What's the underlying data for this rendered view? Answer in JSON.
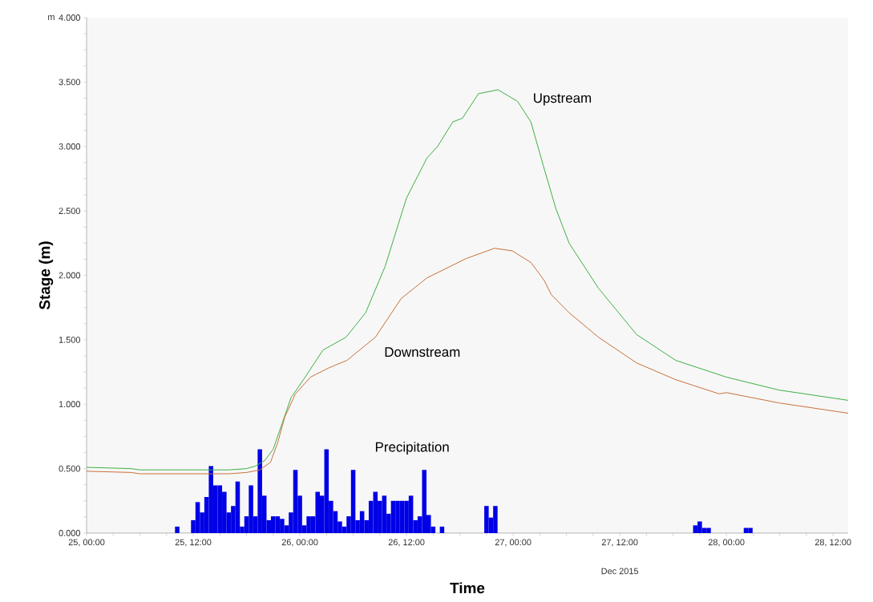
{
  "chart_data": {
    "type": "line",
    "xlabel": "Time",
    "ylabel": "Stage (m)",
    "annotations": [
      "m",
      "Dec 2015"
    ],
    "xlim": [
      "2015-12-25T00:00",
      "2015-12-28T13:42"
    ],
    "ylim": [
      0,
      4
    ],
    "xticks": [
      {
        "value": "2015-12-25T00:00",
        "label": "25, 00:00"
      },
      {
        "value": "2015-12-25T03:00",
        "label": null
      },
      {
        "value": "2015-12-25T06:00",
        "label": null
      },
      {
        "value": "2015-12-25T09:00",
        "label": null
      },
      {
        "value": "2015-12-25T12:00",
        "label": "25, 12:00"
      },
      {
        "value": "2015-12-25T15:00",
        "label": null
      },
      {
        "value": "2015-12-25T18:00",
        "label": null
      },
      {
        "value": "2015-12-25T21:00",
        "label": null
      },
      {
        "value": "2015-12-26T00:00",
        "label": "26, 00:00"
      },
      {
        "value": "2015-12-26T03:00",
        "label": null
      },
      {
        "value": "2015-12-26T06:00",
        "label": null
      },
      {
        "value": "2015-12-26T09:00",
        "label": null
      },
      {
        "value": "2015-12-26T12:00",
        "label": "26, 12:00"
      },
      {
        "value": "2015-12-26T15:00",
        "label": null
      },
      {
        "value": "2015-12-26T18:00",
        "label": null
      },
      {
        "value": "2015-12-26T21:00",
        "label": null
      },
      {
        "value": "2015-12-27T00:00",
        "label": "27, 00:00"
      },
      {
        "value": "2015-12-27T03:00",
        "label": null
      },
      {
        "value": "2015-12-27T06:00",
        "label": null
      },
      {
        "value": "2015-12-27T09:00",
        "label": null
      },
      {
        "value": "2015-12-27T12:00",
        "label": "27, 12:00"
      },
      {
        "value": "2015-12-27T15:00",
        "label": null
      },
      {
        "value": "2015-12-27T18:00",
        "label": null
      },
      {
        "value": "2015-12-27T21:00",
        "label": null
      },
      {
        "value": "2015-12-28T00:00",
        "label": "28, 00:00"
      },
      {
        "value": "2015-12-28T03:00",
        "label": null
      },
      {
        "value": "2015-12-28T06:00",
        "label": null
      },
      {
        "value": "2015-12-28T09:00",
        "label": null
      },
      {
        "value": "2015-12-28T12:00",
        "label": "28, 12:00"
      }
    ],
    "yticks": [
      {
        "value": 0,
        "label": "0.000"
      },
      {
        "value": 0.125,
        "label": null
      },
      {
        "value": 0.25,
        "label": null
      },
      {
        "value": 0.375,
        "label": null
      },
      {
        "value": 0.5,
        "label": "0.500"
      },
      {
        "value": 0.625,
        "label": null
      },
      {
        "value": 0.75,
        "label": null
      },
      {
        "value": 0.875,
        "label": null
      },
      {
        "value": 1,
        "label": "1.000"
      },
      {
        "value": 1.125,
        "label": null
      },
      {
        "value": 1.25,
        "label": null
      },
      {
        "value": 1.375,
        "label": null
      },
      {
        "value": 1.5,
        "label": "1.500"
      },
      {
        "value": 1.625,
        "label": null
      },
      {
        "value": 1.75,
        "label": null
      },
      {
        "value": 1.875,
        "label": null
      },
      {
        "value": 2,
        "label": "2.000"
      },
      {
        "value": 2.125,
        "label": null
      },
      {
        "value": 2.25,
        "label": null
      },
      {
        "value": 2.375,
        "label": null
      },
      {
        "value": 2.5,
        "label": "2.500"
      },
      {
        "value": 2.625,
        "label": null
      },
      {
        "value": 2.75,
        "label": null
      },
      {
        "value": 2.875,
        "label": null
      },
      {
        "value": 3,
        "label": "3.000"
      },
      {
        "value": 3.125,
        "label": null
      },
      {
        "value": 3.25,
        "label": null
      },
      {
        "value": 3.375,
        "label": null
      },
      {
        "value": 3.5,
        "label": "3.500"
      },
      {
        "value": 3.625,
        "label": null
      },
      {
        "value": 3.75,
        "label": null
      },
      {
        "value": 3.875,
        "label": null
      },
      {
        "value": 4,
        "label": "4.000"
      }
    ],
    "series": [
      {
        "name": "Upstream",
        "color": "#3cb043",
        "x": [
          "2015-12-25T00:00",
          "2015-12-25T05:00",
          "2015-12-25T06:00",
          "2015-12-25T16:00",
          "2015-12-25T18:00",
          "2015-12-25T19:00",
          "2015-12-25T20:00",
          "2015-12-25T21:00",
          "2015-12-25T22:00",
          "2015-12-25T23:00",
          "2015-12-26T00:30",
          "2015-12-26T02:36",
          "2015-12-26T05:12",
          "2015-12-26T07:24",
          "2015-12-26T09:36",
          "2015-12-26T12:00",
          "2015-12-26T14:18",
          "2015-12-26T15:30",
          "2015-12-26T17:12",
          "2015-12-26T18:18",
          "2015-12-26T20:06",
          "2015-12-26T22:18",
          "2015-12-27T00:30",
          "2015-12-27T02:00",
          "2015-12-27T03:24",
          "2015-12-27T04:48",
          "2015-12-27T06:18",
          "2015-12-27T09:36",
          "2015-12-27T13:54",
          "2015-12-27T18:18",
          "2015-12-28T00:00",
          "2015-12-28T05:54",
          "2015-12-28T13:42"
        ],
        "values": [
          0.51,
          0.5,
          0.49,
          0.49,
          0.5,
          0.52,
          0.56,
          0.65,
          0.85,
          1.05,
          1.2,
          1.42,
          1.52,
          1.71,
          2.07,
          2.6,
          2.91,
          3.0,
          3.19,
          3.22,
          3.41,
          3.44,
          3.35,
          3.19,
          2.85,
          2.52,
          2.25,
          1.9,
          1.54,
          1.34,
          1.21,
          1.11,
          1.03
        ]
      },
      {
        "name": "Downstream",
        "color": "#c8703a",
        "x": [
          "2015-12-25T00:00",
          "2015-12-25T05:00",
          "2015-12-25T06:00",
          "2015-12-25T16:00",
          "2015-12-25T18:00",
          "2015-12-25T19:30",
          "2015-12-25T20:42",
          "2015-12-25T21:30",
          "2015-12-25T22:18",
          "2015-12-25T23:30",
          "2015-12-26T01:12",
          "2015-12-26T03:12",
          "2015-12-26T05:18",
          "2015-12-26T08:30",
          "2015-12-26T11:24",
          "2015-12-26T14:18",
          "2015-12-26T18:42",
          "2015-12-26T21:54",
          "2015-12-26T23:54",
          "2015-12-27T02:00",
          "2015-12-27T03:30",
          "2015-12-27T04:18",
          "2015-12-27T06:18",
          "2015-12-27T09:36",
          "2015-12-27T13:54",
          "2015-12-27T18:18",
          "2015-12-27T23:12",
          "2015-12-28T00:00",
          "2015-12-28T05:54",
          "2015-12-28T13:42"
        ],
        "values": [
          0.48,
          0.47,
          0.46,
          0.46,
          0.47,
          0.49,
          0.55,
          0.7,
          0.9,
          1.08,
          1.21,
          1.28,
          1.34,
          1.52,
          1.82,
          1.98,
          2.13,
          2.21,
          2.19,
          2.1,
          1.96,
          1.85,
          1.71,
          1.52,
          1.32,
          1.19,
          1.08,
          1.09,
          1.01,
          0.93
        ]
      },
      {
        "name": "Precipitation",
        "type": "bar",
        "color": "#0000e6",
        "x": [
          "2015-12-25T10:12",
          "2015-12-25T12:00",
          "2015-12-25T12:30",
          "2015-12-25T13:00",
          "2015-12-25T13:30",
          "2015-12-25T14:00",
          "2015-12-25T14:30",
          "2015-12-25T15:00",
          "2015-12-25T15:30",
          "2015-12-25T16:00",
          "2015-12-25T16:30",
          "2015-12-25T17:00",
          "2015-12-25T17:30",
          "2015-12-25T18:00",
          "2015-12-25T18:30",
          "2015-12-25T19:00",
          "2015-12-25T19:30",
          "2015-12-25T20:00",
          "2015-12-25T20:30",
          "2015-12-25T21:00",
          "2015-12-25T21:30",
          "2015-12-25T22:00",
          "2015-12-25T22:30",
          "2015-12-25T23:00",
          "2015-12-25T23:30",
          "2015-12-26T00:00",
          "2015-12-26T00:30",
          "2015-12-26T01:00",
          "2015-12-26T01:30",
          "2015-12-26T02:00",
          "2015-12-26T02:30",
          "2015-12-26T03:00",
          "2015-12-26T03:30",
          "2015-12-26T04:00",
          "2015-12-26T04:30",
          "2015-12-26T05:00",
          "2015-12-26T05:30",
          "2015-12-26T06:00",
          "2015-12-26T06:30",
          "2015-12-26T07:00",
          "2015-12-26T07:30",
          "2015-12-26T08:00",
          "2015-12-26T08:30",
          "2015-12-26T09:00",
          "2015-12-26T09:30",
          "2015-12-26T10:00",
          "2015-12-26T10:30",
          "2015-12-26T11:00",
          "2015-12-26T11:30",
          "2015-12-26T12:00",
          "2015-12-26T12:30",
          "2015-12-26T13:00",
          "2015-12-26T13:30",
          "2015-12-26T14:00",
          "2015-12-26T14:30",
          "2015-12-26T15:00",
          "2015-12-26T16:00",
          "2015-12-26T21:00",
          "2015-12-26T21:30",
          "2015-12-26T22:00",
          "2015-12-27T20:30",
          "2015-12-27T21:00",
          "2015-12-27T21:30",
          "2015-12-27T22:00",
          "2015-12-28T02:12",
          "2015-12-28T02:42"
        ],
        "values": [
          0.05,
          0.1,
          0.24,
          0.16,
          0.28,
          0.52,
          0.37,
          0.37,
          0.32,
          0.16,
          0.21,
          0.4,
          0.05,
          0.13,
          0.37,
          0.13,
          0.65,
          0.29,
          0.1,
          0.13,
          0.13,
          0.11,
          0.06,
          0.16,
          0.49,
          0.29,
          0.06,
          0.13,
          0.13,
          0.32,
          0.29,
          0.65,
          0.25,
          0.17,
          0.09,
          0.05,
          0.13,
          0.49,
          0.1,
          0.17,
          0.1,
          0.25,
          0.32,
          0.25,
          0.29,
          0.15,
          0.25,
          0.25,
          0.25,
          0.25,
          0.29,
          0.1,
          0.13,
          0.49,
          0.14,
          0.05,
          0.05,
          0.21,
          0.12,
          0.21,
          0.06,
          0.09,
          0.04,
          0.04,
          0.04,
          0.04
        ]
      }
    ]
  }
}
